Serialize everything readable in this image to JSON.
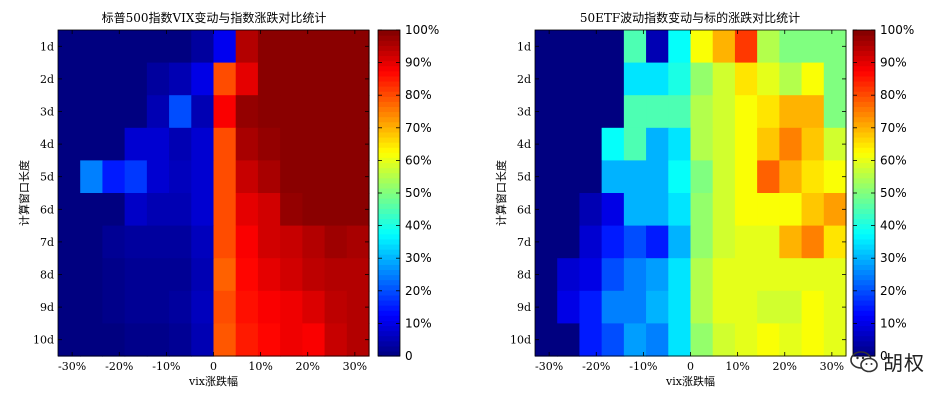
{
  "chart_data": [
    {
      "type": "heatmap",
      "title": "标普500指数VIX变动与指数涨跌对比统计",
      "xlabel": "vix涨跌幅",
      "ylabel": "计算窗口长度",
      "x_tick_labels": [
        "-30%",
        "-20%",
        "-10%",
        "0",
        "10%",
        "20%",
        "30%"
      ],
      "x_tick_values": [
        -30,
        -20,
        -10,
        0,
        10,
        20,
        30
      ],
      "xlim": [
        -33,
        33
      ],
      "y_categories": [
        "1d",
        "2d",
        "3d",
        "4d",
        "5d",
        "6d",
        "7d",
        "8d",
        "9d",
        "10d"
      ],
      "colorbar_ticks": [
        "100%",
        "90%",
        "80%",
        "70%",
        "60%",
        "50%",
        "40%",
        "30%",
        "20%",
        "10%",
        "0"
      ],
      "colorbar_range": [
        0,
        100
      ],
      "values": [
        [
          0,
          0,
          0,
          0,
          0,
          0,
          3,
          11,
          95,
          99,
          99,
          99,
          99,
          99
        ],
        [
          0,
          0,
          0,
          0,
          3,
          5,
          10,
          80,
          90,
          99,
          99,
          99,
          99,
          99
        ],
        [
          0,
          0,
          0,
          0,
          5,
          20,
          5,
          88,
          98,
          99,
          99,
          99,
          99,
          99
        ],
        [
          0,
          0,
          0,
          8,
          8,
          5,
          8,
          80,
          96,
          98,
          99,
          99,
          99,
          99
        ],
        [
          0,
          25,
          15,
          18,
          8,
          6,
          8,
          80,
          93,
          96,
          99,
          99,
          99,
          99
        ],
        [
          0,
          0,
          0,
          7,
          5,
          5,
          8,
          80,
          90,
          92,
          98,
          99,
          99,
          99
        ],
        [
          0,
          0,
          2,
          3,
          3,
          3,
          6,
          80,
          88,
          92,
          93,
          95,
          97,
          96
        ],
        [
          0,
          0,
          1,
          2,
          2,
          2,
          5,
          78,
          87,
          90,
          92,
          94,
          95,
          95
        ],
        [
          0,
          0,
          1,
          2,
          2,
          3,
          6,
          80,
          86,
          88,
          89,
          91,
          94,
          95
        ],
        [
          0,
          0,
          0,
          1,
          1,
          2,
          5,
          79,
          85,
          87,
          89,
          88,
          93,
          95
        ]
      ]
    },
    {
      "type": "heatmap",
      "title": "50ETF波动指数变动与标的涨跌对比统计",
      "xlabel": "vix涨跌幅",
      "ylabel": "计算窗口长度",
      "x_tick_labels": [
        "-30%",
        "-20%",
        "-10%",
        "0",
        "10%",
        "20%",
        "30%"
      ],
      "x_tick_values": [
        -30,
        -20,
        -10,
        0,
        10,
        20,
        30
      ],
      "xlim": [
        -33,
        33
      ],
      "y_categories": [
        "1d",
        "2d",
        "3d",
        "4d",
        "5d",
        "6d",
        "7d",
        "8d",
        "9d",
        "10d"
      ],
      "colorbar_ticks": [
        "100%",
        "90%",
        "80%",
        "70%",
        "60%",
        "50%",
        "40%",
        "30%",
        "20%",
        "10%",
        "0"
      ],
      "colorbar_range": [
        0,
        100
      ],
      "values": [
        [
          0,
          0,
          0,
          0,
          45,
          5,
          38,
          62,
          70,
          82,
          55,
          50,
          50,
          50
        ],
        [
          0,
          0,
          0,
          0,
          35,
          35,
          40,
          52,
          58,
          65,
          60,
          55,
          62,
          50
        ],
        [
          0,
          0,
          0,
          0,
          45,
          45,
          45,
          55,
          58,
          62,
          65,
          70,
          70,
          50
        ],
        [
          0,
          0,
          0,
          38,
          45,
          30,
          35,
          55,
          58,
          62,
          68,
          75,
          68,
          58
        ],
        [
          0,
          0,
          0,
          30,
          30,
          30,
          38,
          50,
          58,
          62,
          78,
          70,
          65,
          62
        ],
        [
          0,
          0,
          5,
          10,
          30,
          30,
          35,
          52,
          58,
          62,
          62,
          62,
          68,
          72
        ],
        [
          0,
          0,
          8,
          15,
          20,
          15,
          30,
          52,
          58,
          60,
          60,
          70,
          75,
          65
        ],
        [
          0,
          8,
          10,
          20,
          25,
          28,
          35,
          55,
          60,
          60,
          60,
          60,
          60,
          60
        ],
        [
          0,
          10,
          15,
          25,
          25,
          30,
          35,
          55,
          60,
          60,
          58,
          58,
          62,
          60
        ],
        [
          0,
          0,
          15,
          20,
          28,
          25,
          35,
          52,
          58,
          60,
          62,
          60,
          62,
          60
        ]
      ]
    }
  ],
  "watermark": {
    "text": "胡权",
    "icon": "wechat-icon"
  }
}
